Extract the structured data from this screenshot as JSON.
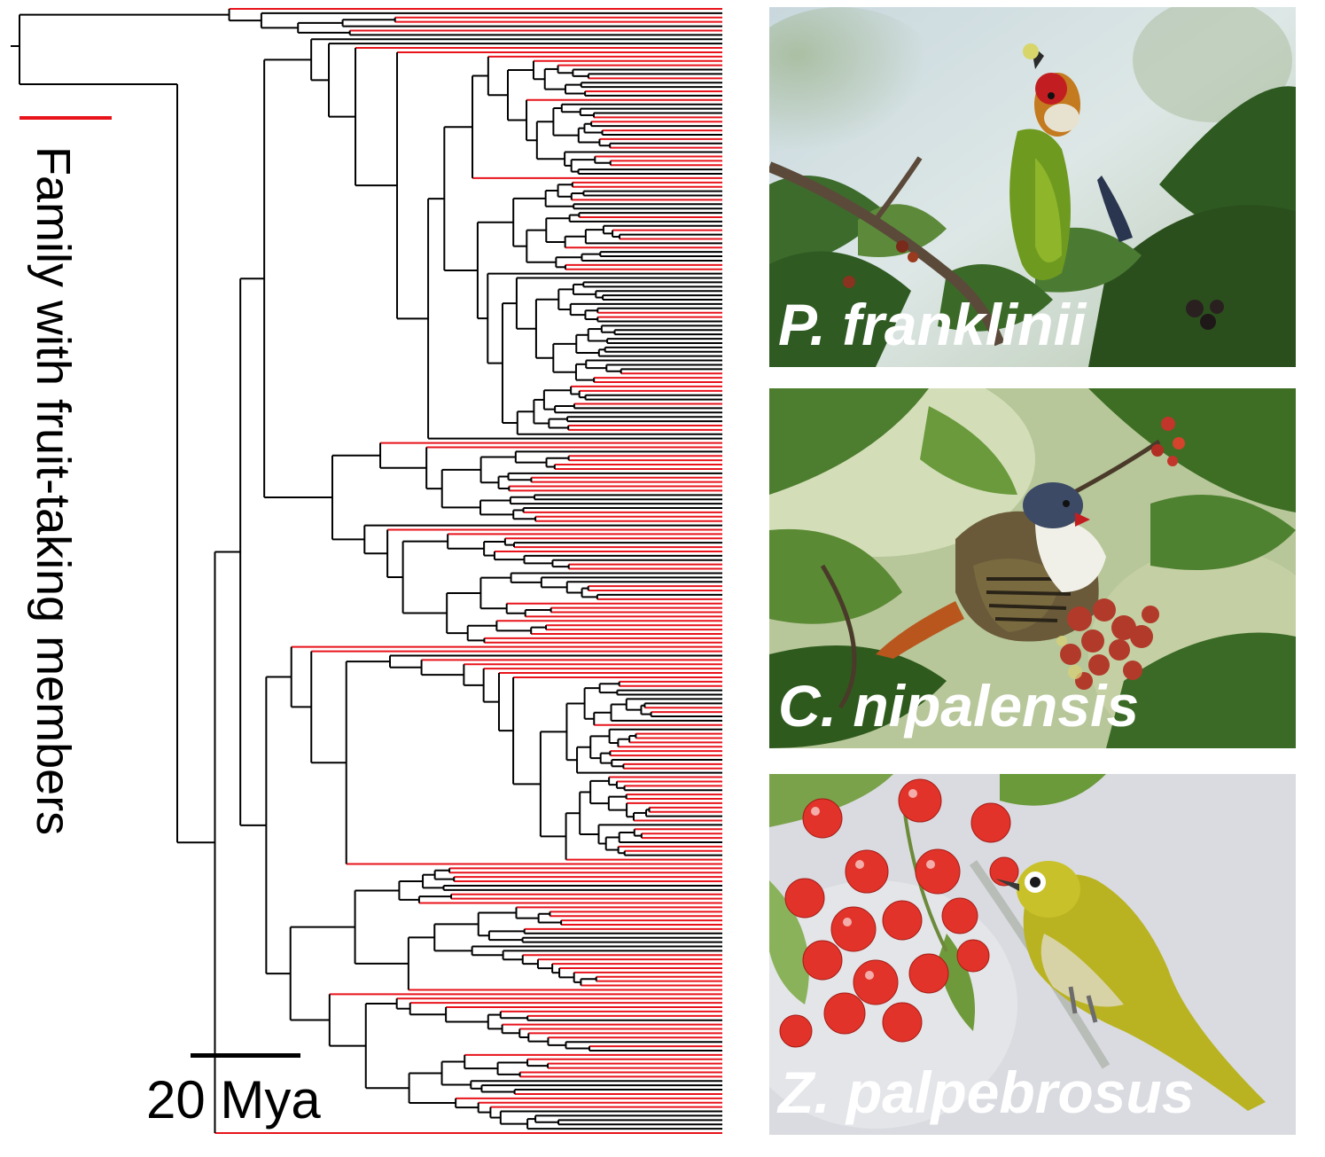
{
  "legend": {
    "label": "Family with fruit-taking members",
    "color": "#e8131b"
  },
  "scale_bar": {
    "label": "20 Mya"
  },
  "tree": {
    "branch_color_default": "#000000",
    "branch_color_highlight": "#e8131b"
  },
  "photos": [
    {
      "caption": "P. franklinii",
      "subject": "barbet-with-fruit"
    },
    {
      "caption": "C. nipalensis",
      "subject": "bird-eating-red-berries"
    },
    {
      "caption": "Z. palpebrosus",
      "subject": "white-eye-with-cherries"
    }
  ]
}
